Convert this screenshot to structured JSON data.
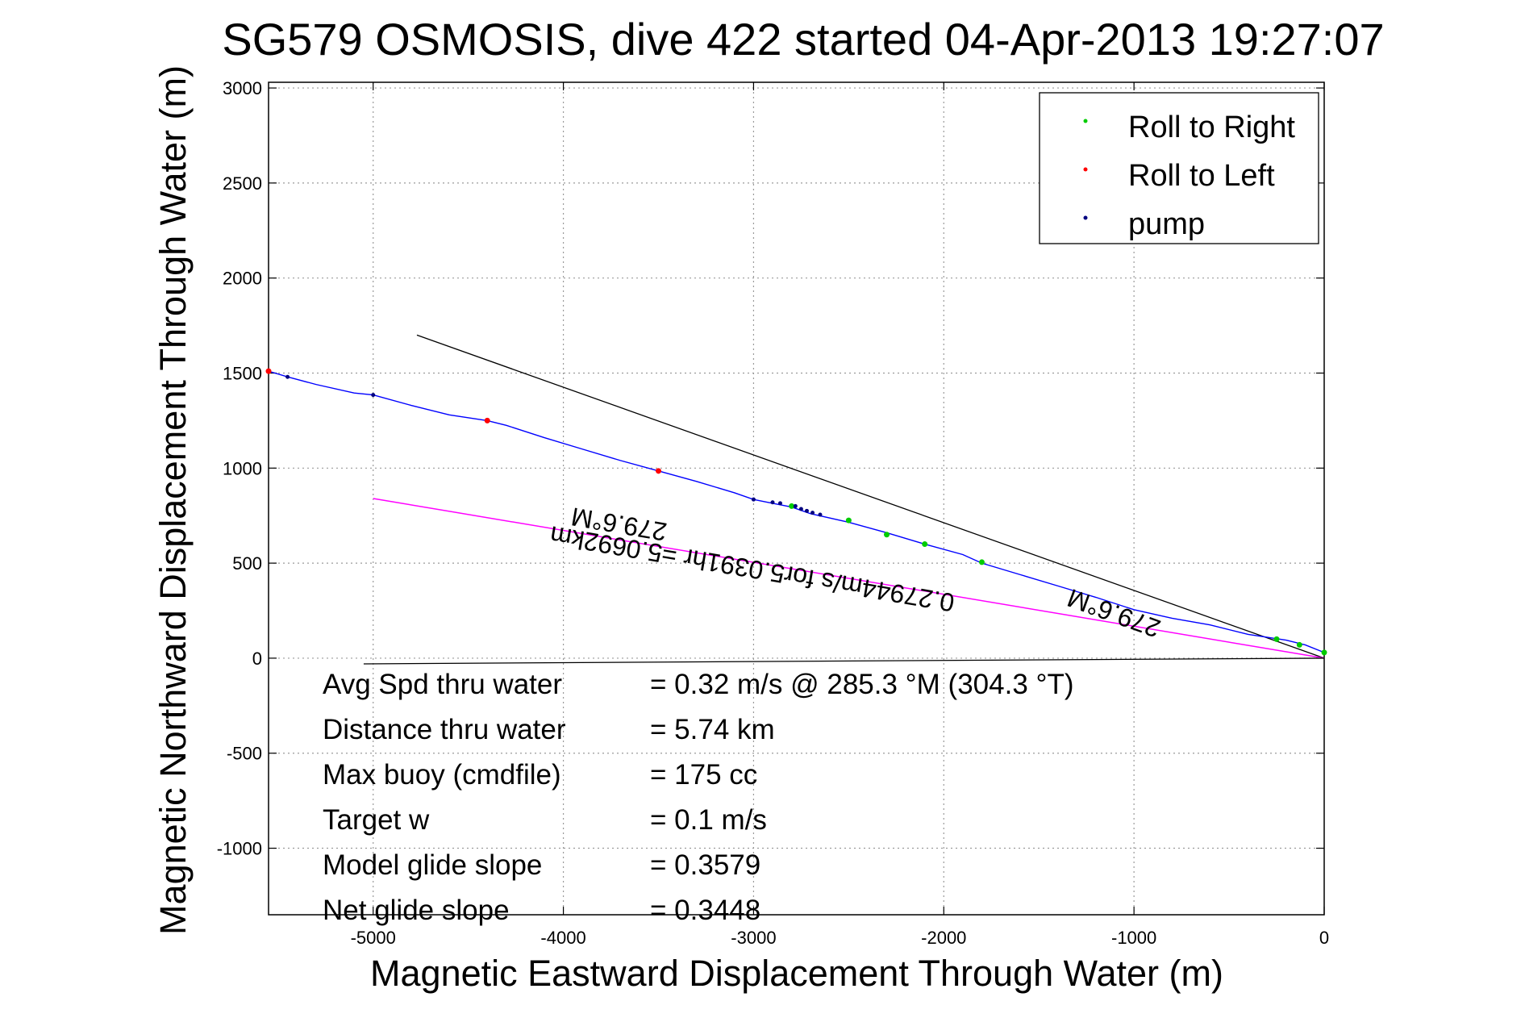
{
  "chart_data": {
    "type": "line",
    "title": "SG579 OSMOSIS, dive 422 started 04-Apr-2013 19:27:07",
    "xlabel": "Magnetic Eastward Displacement Through Water (m)",
    "ylabel": "Magnetic Northward Displacement Through Water (m)",
    "xlim": [
      -5550,
      0
    ],
    "ylim": [
      -1350,
      3030
    ],
    "xticks": [
      -5000,
      -4000,
      -3000,
      -2000,
      -1000,
      0
    ],
    "xtick_labels": [
      "-5000",
      "-4000",
      "-3000",
      "-2000",
      "-1000",
      "0"
    ],
    "yticks": [
      -1000,
      -500,
      0,
      500,
      1000,
      1500,
      2000,
      2500,
      3000
    ],
    "ytick_labels": [
      "-1000",
      "-500",
      "0",
      "500",
      "1000",
      "1500",
      "2000",
      "2500",
      "3000"
    ],
    "grid": true,
    "legend_position": "top-right",
    "legend": [
      {
        "label": "Roll to Right",
        "color": "#00cc00"
      },
      {
        "label": "Roll to Left",
        "color": "#ff0000"
      },
      {
        "label": "pump",
        "color": "#000080"
      }
    ],
    "track": {
      "color": "#0000ff",
      "x": [
        -5550,
        -5450,
        -5300,
        -5100,
        -5000,
        -4800,
        -4600,
        -4400,
        -4300,
        -4100,
        -3900,
        -3700,
        -3500,
        -3300,
        -3100,
        -3000,
        -2900,
        -2800,
        -2700,
        -2500,
        -2300,
        -2100,
        -1900,
        -1800,
        -1600,
        -1400,
        -1200,
        -1000,
        -800,
        -600,
        -400,
        -200,
        -100,
        0
      ],
      "y": [
        1510,
        1480,
        1440,
        1395,
        1385,
        1330,
        1280,
        1250,
        1225,
        1160,
        1100,
        1040,
        985,
        930,
        870,
        835,
        815,
        795,
        760,
        715,
        660,
        600,
        545,
        500,
        440,
        380,
        320,
        255,
        210,
        175,
        125,
        95,
        70,
        30
      ]
    },
    "roll_right_points": {
      "x": [
        -2800,
        -2500,
        -2300,
        -2100,
        -1800,
        -250,
        -130,
        0
      ],
      "y": [
        800,
        725,
        650,
        600,
        505,
        100,
        70,
        30
      ]
    },
    "roll_left_points": {
      "x": [
        -5550,
        -4400,
        -3500
      ],
      "y": [
        1510,
        1250,
        985
      ]
    },
    "pump_points": {
      "x": [
        -5450,
        -5000,
        -3000,
        -2900,
        -2860,
        -2780,
        -2750,
        -2720,
        -2690,
        -2650
      ],
      "y": [
        1480,
        1385,
        835,
        820,
        815,
        800,
        785,
        775,
        765,
        755
      ]
    },
    "heading_line_black": {
      "x": [
        -4770,
        0
      ],
      "y": [
        1700,
        0
      ],
      "color": "#000000"
    },
    "heading_line_magenta": {
      "x": [
        -5000,
        0
      ],
      "y": [
        840,
        0
      ],
      "color": "#ff00ff"
    },
    "base_line": {
      "x": [
        -5050,
        0
      ],
      "y": [
        -30,
        0
      ],
      "color": "#000000"
    },
    "rotated_labels": [
      {
        "text": "279.6°M",
        "x": -3700,
        "y": 750,
        "angle": 189.6
      },
      {
        "text": "0.27944m/s for5.0391hr =5.0692km",
        "x": -3000,
        "y": 515,
        "angle": 189.6
      },
      {
        "text": "279.6°M",
        "x": -1090,
        "y": 280,
        "angle": 200
      }
    ]
  },
  "annotations": [
    {
      "label": "Avg Spd thru water",
      "value": "=  0.32 m/s @ 285.3 °M (304.3 °T)"
    },
    {
      "label": "Distance thru water",
      "value": "=  5.74 km"
    },
    {
      "label": "Max buoy (cmdfile)",
      "value": "= 175 cc"
    },
    {
      "label": "Target w",
      "value": "= 0.1 m/s"
    },
    {
      "label": "Model glide slope",
      "value": "= 0.3579"
    },
    {
      "label": "Net glide slope",
      "value": "= 0.3448"
    }
  ]
}
